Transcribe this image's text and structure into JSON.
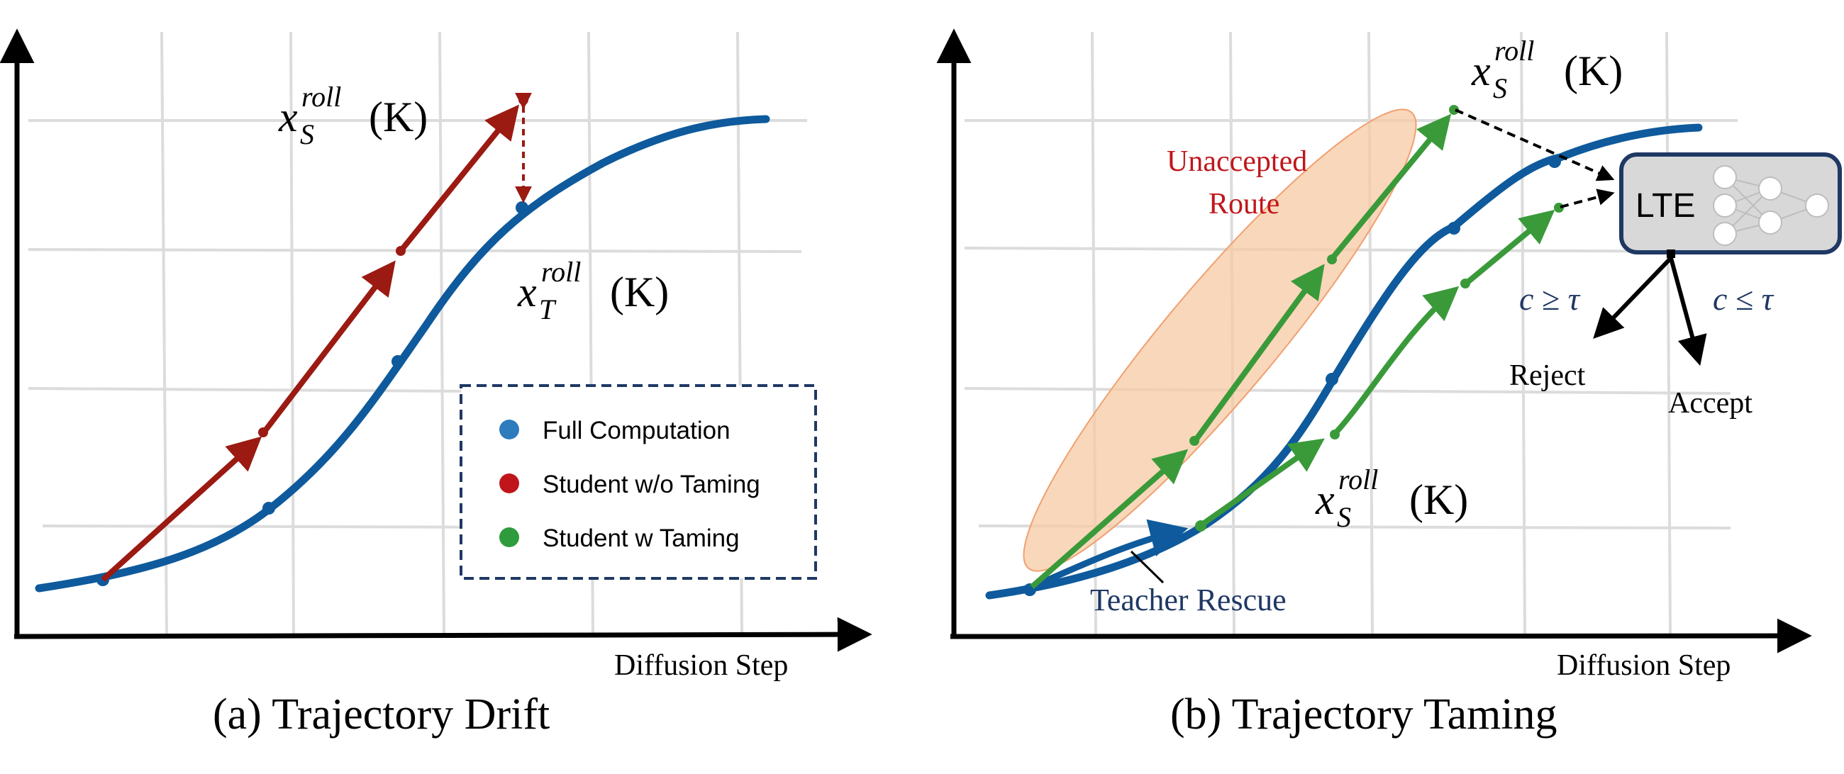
{
  "colors": {
    "teacher": "#0e5a9c",
    "student_drift": "#9b1a12",
    "student_tamed": "#3a9a3a",
    "legend_blue": "#2e7bbd",
    "legend_red": "#c0161b",
    "legend_green": "#2e9b3c",
    "unaccepted_label": "#c0161b",
    "ellipse_fill": "#f7c9a3",
    "lte_fill": "#d8d8d8",
    "lte_border": "#1f3864",
    "rescue_label": "#1f3864",
    "grid": "#dcdcdc"
  },
  "panel_a": {
    "caption": "(a) Trajectory Drift",
    "xlabel": "Diffusion Step",
    "label_student": {
      "base": "x",
      "sub": "S",
      "sup": "roll",
      "arg": "(K)"
    },
    "label_teacher": {
      "base": "x",
      "sub": "T",
      "sup": "roll",
      "arg": "(K)"
    },
    "legend": [
      {
        "label": "Full Computation",
        "color_key": "legend_blue"
      },
      {
        "label": "Student w/o Taming",
        "color_key": "legend_red"
      },
      {
        "label": "Student w Taming",
        "color_key": "legend_green"
      }
    ]
  },
  "panel_b": {
    "caption": "(b) Trajectory Taming",
    "xlabel": "Diffusion Step",
    "unaccepted_line1": "Unaccepted",
    "unaccepted_line2": "Route",
    "teacher_rescue": "Teacher Rescue",
    "lte_label": "LTE",
    "label_student_top": {
      "base": "x",
      "sub": "S",
      "sup": "roll",
      "arg": "(K)"
    },
    "label_student_mid": {
      "base": "x",
      "sub": "S",
      "sup": "roll",
      "arg": "(K)"
    },
    "cond_reject": "c ≥ τ",
    "cond_accept": "c ≤ τ",
    "reject": "Reject",
    "accept": "Accept"
  }
}
